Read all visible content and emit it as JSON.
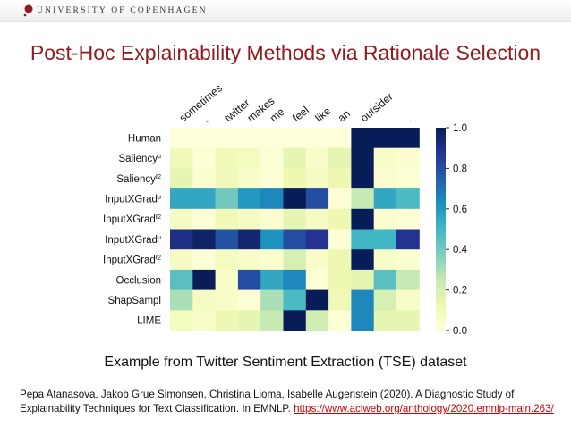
{
  "header": {
    "university": "UNIVERSITY OF COPENHAGEN",
    "brand_color": "#901a1e"
  },
  "title": "Post-Hoc Explainability Methods via Rationale Selection",
  "caption": "Example from Twitter Sentiment Extraction (TSE) dataset",
  "citation": {
    "text": "Pepa Atanasova, Jakob Grue Simonsen, Christina Lioma, Isabelle Augenstein (2020). A Diagnostic Study of Explainability Techniques for Text Classification. In EMNLP. ",
    "link": "https://www.aclweb.org/anthology/2020.emnlp-main.263/"
  },
  "chart_data": {
    "type": "heatmap",
    "colormap": "YlGnBu",
    "x": [
      "sometimes",
      ",",
      "twitter",
      "makes",
      "me",
      "feel",
      "like",
      "an",
      "outsider",
      ".",
      "."
    ],
    "y": [
      {
        "name": "Human",
        "sup": ""
      },
      {
        "name": "Saliency",
        "sup": "μ"
      },
      {
        "name": "Saliency",
        "sup": "ℓ2"
      },
      {
        "name": "InputXGrad",
        "sup": "μ"
      },
      {
        "name": "InputXGrad",
        "sup": "ℓ2"
      },
      {
        "name": "InputXGrad",
        "sup": "μ"
      },
      {
        "name": "InputXGrad",
        "sup": "ℓ2"
      },
      {
        "name": "Occlusion",
        "sup": ""
      },
      {
        "name": "ShapSampl",
        "sup": ""
      },
      {
        "name": "LIME",
        "sup": ""
      }
    ],
    "values": [
      [
        0,
        0,
        0,
        0,
        0,
        0,
        0,
        0,
        1,
        1,
        1
      ],
      [
        0.1,
        0.02,
        0.1,
        0.08,
        0.02,
        0.15,
        0.05,
        0.15,
        1,
        0.05,
        0.03
      ],
      [
        0.15,
        0.03,
        0.1,
        0.05,
        0.02,
        0.12,
        0.07,
        0.12,
        1,
        0.03,
        0.02
      ],
      [
        0.55,
        0.55,
        0.4,
        0.6,
        0.65,
        1,
        0.8,
        0.01,
        0.25,
        0.55,
        0.48
      ],
      [
        0.07,
        0.02,
        0.1,
        0.07,
        0.03,
        0.15,
        0.07,
        0.12,
        1,
        0.03,
        0.02
      ],
      [
        0.9,
        0.97,
        0.78,
        0.95,
        0.62,
        0.8,
        0.88,
        0.02,
        0.5,
        0.5,
        0.88
      ],
      [
        0.07,
        0.02,
        0.08,
        0.05,
        0.03,
        0.2,
        0.05,
        0.12,
        1,
        0.05,
        0.03
      ],
      [
        0.45,
        1,
        0.05,
        0.8,
        0.55,
        0.65,
        0.01,
        0.12,
        0.15,
        0.45,
        0.25
      ],
      [
        0.3,
        0.07,
        0.05,
        0.01,
        0.3,
        0.48,
        1,
        0.1,
        0.65,
        0.2,
        0.05
      ],
      [
        0.08,
        0.05,
        0.12,
        0.15,
        0.25,
        1,
        0.22,
        0.02,
        0.65,
        0.15,
        0.15
      ]
    ],
    "colorbar": {
      "range": [
        0,
        1
      ],
      "ticks": [
        "0.0",
        "0.2",
        "0.4",
        "0.6",
        "0.8",
        "1.0"
      ]
    }
  }
}
